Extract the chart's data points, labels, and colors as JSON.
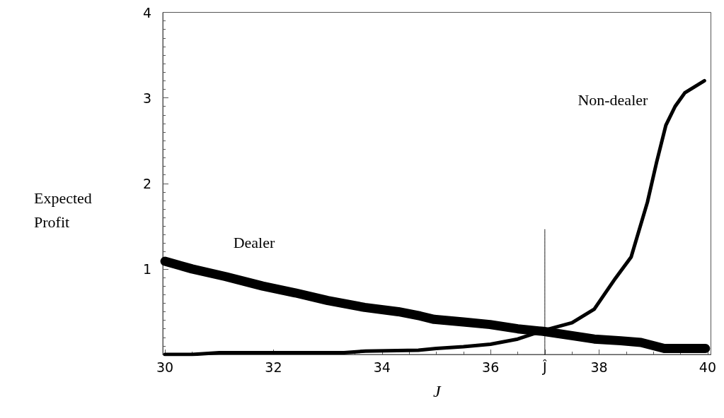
{
  "chart_data": {
    "type": "line",
    "xlabel": "J",
    "ylabel": "Expected Profit",
    "xlim": [
      29.96,
      40.06
    ],
    "ylim": [
      0,
      4
    ],
    "xticks": [
      30,
      32,
      34,
      36,
      {
        "value": 37,
        "label": "Ĵ"
      },
      38,
      40
    ],
    "yticks": [
      1,
      2,
      3,
      4
    ],
    "grid": false,
    "legend": false,
    "marker": "none",
    "line_style": "solid",
    "series": [
      {
        "name": "Dealer",
        "color": "#000000",
        "x": [
          30,
          30.5,
          31.12,
          31.8,
          32.4,
          33,
          33.68,
          34.3,
          34.7,
          34.96,
          35.5,
          35.99,
          36.5,
          36.97,
          37.5,
          37.91,
          38.4,
          38.77,
          39.2,
          39.5,
          39.96
        ],
        "values": [
          1.09,
          1.0,
          0.91,
          0.8,
          0.72,
          0.63,
          0.55,
          0.5,
          0.45,
          0.41,
          0.38,
          0.35,
          0.3,
          0.27,
          0.22,
          0.18,
          0.16,
          0.14,
          0.07,
          0.07,
          0.07
        ]
      },
      {
        "name": "Non-dealer",
        "color": "#000000",
        "x": [
          30,
          30.5,
          31,
          32,
          33.3,
          33.7,
          34.67,
          35,
          35.5,
          36,
          36.5,
          36.97,
          37.5,
          37.91,
          38.3,
          38.59,
          38.89,
          39.06,
          39.23,
          39.4,
          39.58,
          39.94
        ],
        "values": [
          0.0,
          0.0,
          0.02,
          0.02,
          0.02,
          0.04,
          0.05,
          0.07,
          0.09,
          0.12,
          0.18,
          0.28,
          0.37,
          0.53,
          0.89,
          1.14,
          1.78,
          2.25,
          2.68,
          2.9,
          3.06,
          3.2
        ]
      },
      {
        "type": "line",
        "color": "#000000",
        "line_style": "dotted",
        "x": [
          37,
          37
        ],
        "values": [
          0,
          1.46
        ]
      }
    ]
  }
}
